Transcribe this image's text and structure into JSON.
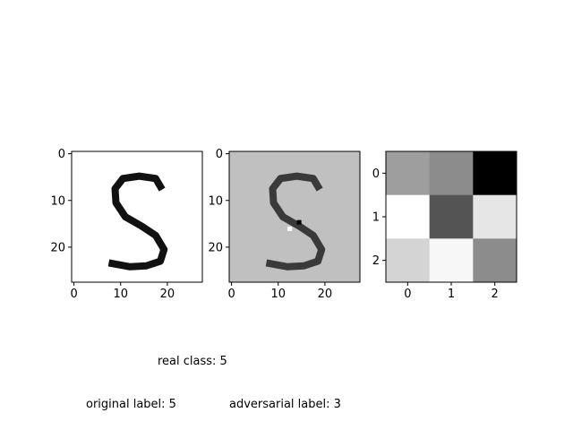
{
  "chart_data": [
    {
      "type": "heatmap",
      "panel": "original",
      "colormap": "gray_r",
      "x_ticks": [
        "0",
        "10",
        "20"
      ],
      "y_ticks": [
        "0",
        "10",
        "20"
      ],
      "xlim": [
        -0.5,
        27.5
      ],
      "ylim": [
        27.5,
        -0.5
      ],
      "glyph": "S",
      "background": "#ffffff",
      "foreground": "#111111"
    },
    {
      "type": "heatmap",
      "panel": "adversarial",
      "colormap": "gray_r",
      "x_ticks": [
        "0",
        "10",
        "20"
      ],
      "y_ticks": [
        "0",
        "10",
        "20"
      ],
      "xlim": [
        -0.5,
        27.5
      ],
      "ylim": [
        27.5,
        -0.5
      ],
      "glyph": "S",
      "background": "#c0c0c0",
      "foreground": "#3a3a3a"
    },
    {
      "type": "heatmap",
      "panel": "perturbation-kernel",
      "colormap": "gray",
      "x_ticks": [
        "0",
        "1",
        "2"
      ],
      "y_ticks": [
        "0",
        "1",
        "2"
      ],
      "values": [
        [
          0.62,
          0.55,
          0.0
        ],
        [
          1.0,
          0.33,
          0.9
        ],
        [
          0.83,
          0.97,
          0.55
        ]
      ]
    }
  ],
  "captions": {
    "real_class": "real class: 5",
    "original_label": "original label: 5",
    "adversarial_label": "adversarial label: 3"
  }
}
